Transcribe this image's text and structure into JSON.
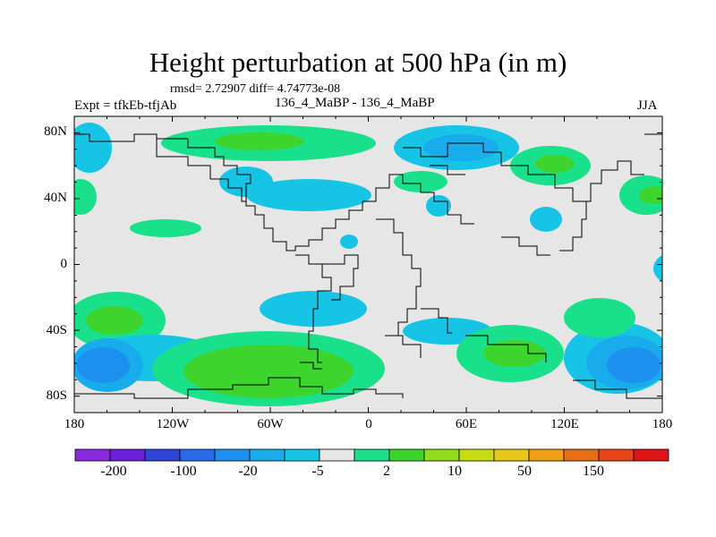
{
  "title": "Height perturbation at 500 hPa (in m)",
  "stats": "rmsd= 2.72907 diff= 4.74773e-08",
  "experiment": "Expt = tfkEb-tfjAb",
  "subtitle": "136_4_MaBP - 136_4_MaBP",
  "season": "JJA",
  "map": {
    "projection": "cylindrical equidistant",
    "lon_range": [
      -180,
      180
    ],
    "lat_range": [
      -90,
      90
    ],
    "y_ticks": [
      "80N",
      "40N",
      "0",
      "40S",
      "80S"
    ],
    "x_ticks": [
      "180",
      "120W",
      "60W",
      "0",
      "60E",
      "120E",
      "180"
    ],
    "background_color": "#e6e6e6"
  },
  "colorbar": {
    "colors": [
      "#8a2be2",
      "#6a1fd8",
      "#3045d8",
      "#2a6ae8",
      "#1e90f0",
      "#19acec",
      "#16c4e6",
      "#e6e6e6",
      "#19e08a",
      "#3ed42e",
      "#92dc1c",
      "#c8dc14",
      "#e8c818",
      "#f0a018",
      "#e86e14",
      "#e84418",
      "#e01414"
    ],
    "labels": [
      "-200",
      "-100",
      "-20",
      "-5",
      "2",
      "10",
      "50",
      "150"
    ]
  }
}
